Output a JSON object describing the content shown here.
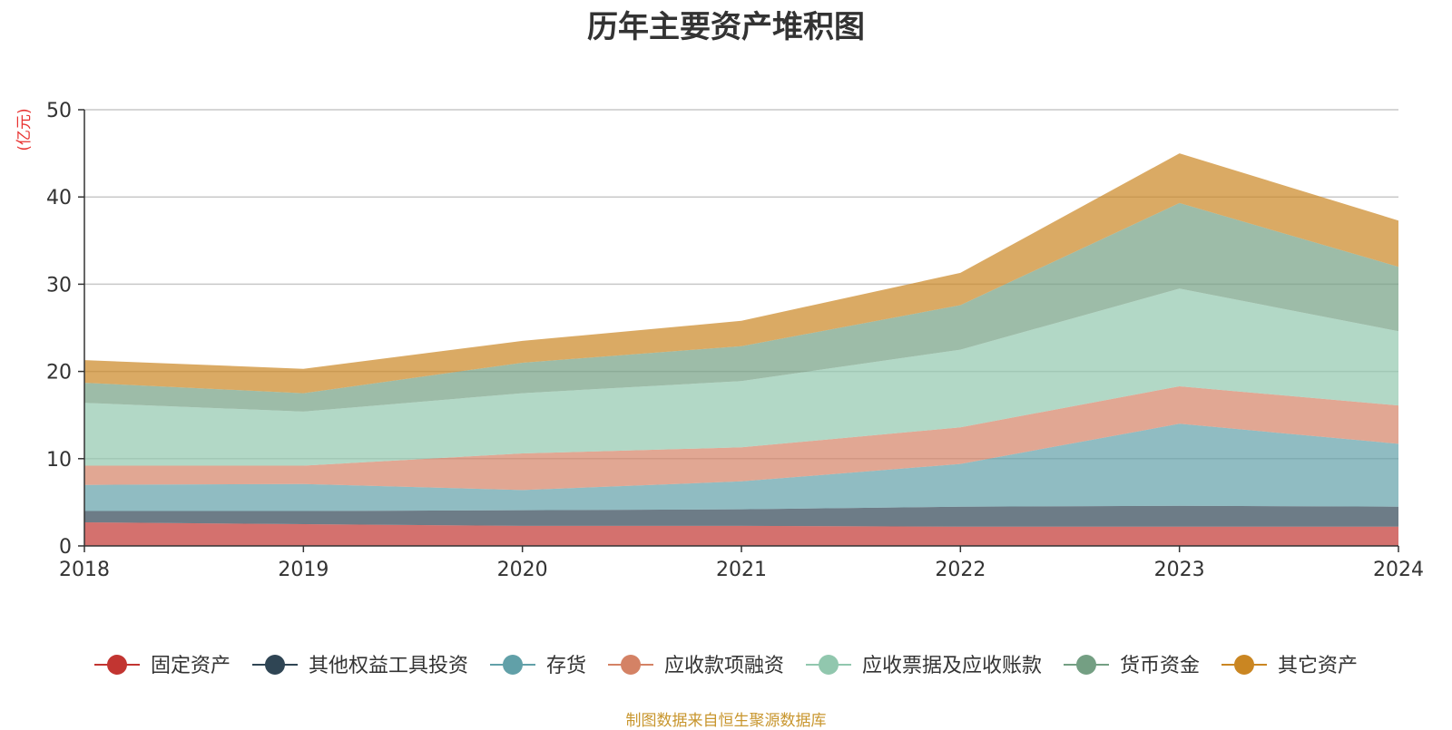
{
  "chart_data": {
    "type": "area",
    "title": "历年主要资产堆积图",
    "ylabel": "(亿元)",
    "xlabel": "",
    "categories": [
      "2018",
      "2019",
      "2020",
      "2021",
      "2022",
      "2023",
      "2024"
    ],
    "ylim": [
      0,
      50
    ],
    "yticks": [
      0,
      10,
      20,
      30,
      40,
      50
    ],
    "stacked": true,
    "grid": true,
    "legend_position": "bottom",
    "series": [
      {
        "name": "固定资产",
        "color": "#c23531",
        "values": [
          2.7,
          2.5,
          2.3,
          2.3,
          2.2,
          2.2,
          2.2
        ]
      },
      {
        "name": "其他权益工具投资",
        "color": "#2f4554",
        "values": [
          1.3,
          1.5,
          1.8,
          1.9,
          2.3,
          2.4,
          2.3
        ]
      },
      {
        "name": "存货",
        "color": "#61a0a8",
        "values": [
          3.0,
          3.1,
          2.3,
          3.2,
          4.9,
          9.4,
          7.2
        ]
      },
      {
        "name": "应收款项融资",
        "color": "#d48265",
        "values": [
          2.2,
          2.1,
          4.2,
          3.9,
          4.2,
          4.3,
          4.4
        ]
      },
      {
        "name": "应收票据及应收账款",
        "color": "#91c7ae",
        "values": [
          7.2,
          6.2,
          6.9,
          7.6,
          8.9,
          11.2,
          8.5
        ]
      },
      {
        "name": "货币资金",
        "color": "#749f83",
        "values": [
          2.3,
          2.1,
          3.5,
          4.0,
          5.1,
          9.8,
          7.4
        ]
      },
      {
        "name": "其它资产",
        "color": "#ca8622",
        "values": [
          2.6,
          2.8,
          2.5,
          2.9,
          3.7,
          5.7,
          5.3
        ]
      }
    ]
  },
  "source_note": "制图数据来自恒生聚源数据库"
}
